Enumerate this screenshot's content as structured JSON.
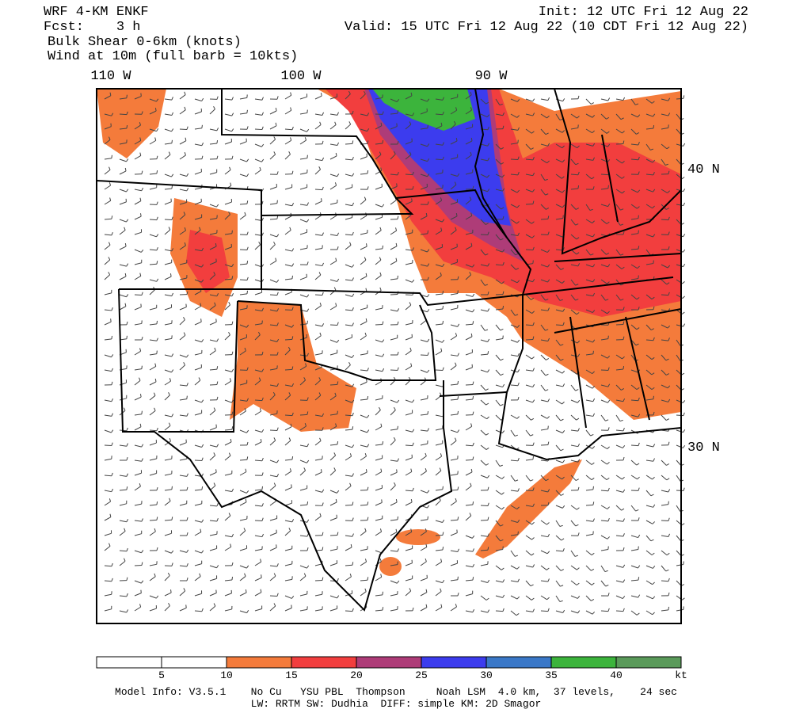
{
  "header": {
    "lines": [
      "WRF 4-KM ENKF",
      "Fcst:    3 h",
      "Bulk Shear 0-6km (knots)",
      "Wind at 10m (full barb = 10kts)"
    ],
    "init": "Init: 12 UTC Fri 12 Aug 22",
    "valid": "Valid: 15 UTC Fri 12 Aug 22 (10 CDT Fri 12 Aug 22)"
  },
  "map": {
    "lon_labels": [
      "110 W",
      "100 W",
      "90 W"
    ],
    "lat_labels": [
      "40 N",
      "30 N"
    ]
  },
  "colorbar": {
    "colors": [
      "#ffffff",
      "#ffffff",
      "#f47b3b",
      "#f23e3e",
      "#ae3c78",
      "#3c3cee",
      "#3a78c8",
      "#3cb43c",
      "#5a9a5a"
    ],
    "ticks": [
      5,
      10,
      15,
      20,
      25,
      30,
      35,
      40
    ],
    "unit": "kt"
  },
  "footer": [
    "Model Info: V3.5.1    No Cu   YSU PBL  Thompson     Noah LSM  4.0 km,  37 levels,    24 sec",
    "LW: RRTM SW: Dudhia  DIFF: simple KM: 2D Smagor"
  ]
}
